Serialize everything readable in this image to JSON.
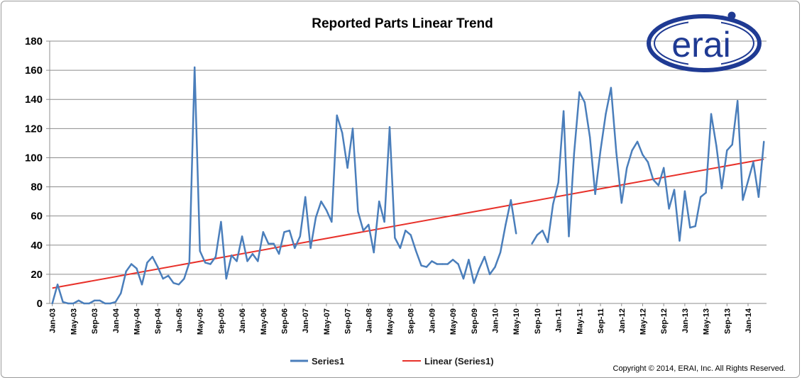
{
  "chart_data": {
    "type": "line",
    "title": "Reported Parts Linear Trend",
    "xlabel": "",
    "ylabel": "",
    "ylim": [
      0,
      180
    ],
    "yticks": [
      "0",
      "20",
      "40",
      "60",
      "80",
      "100",
      "120",
      "140",
      "160",
      "180"
    ],
    "xticks": [
      "Jan-03",
      "May-03",
      "Sep-03",
      "Jan-04",
      "May-04",
      "Sep-04",
      "Jan-05",
      "May-05",
      "Sep-05",
      "Jan-06",
      "May-06",
      "Sep-06",
      "Jan-07",
      "May-07",
      "Sep-07",
      "Jan-08",
      "May-08",
      "Sep-08",
      "Jan-09",
      "May-09",
      "Sep-09",
      "Jan-10",
      "May-10",
      "Sep-10",
      "Jan-11",
      "May-11",
      "Sep-11",
      "Jan-12",
      "May-12",
      "Sep-12",
      "Jan-13",
      "May-13",
      "Sep-13",
      "Jan-14"
    ],
    "x_start": "Jan-03",
    "x_end": "Jun-14",
    "grid": "horizontal",
    "legend_position": "bottom",
    "series": [
      {
        "name": "Series1",
        "color": "#4a7ebb",
        "values": [
          0,
          13,
          1,
          0,
          0,
          2,
          0,
          0,
          2,
          2,
          0,
          0,
          1,
          7,
          22,
          27,
          24,
          13,
          28,
          32,
          25,
          17,
          19,
          14,
          13,
          17,
          28,
          162,
          36,
          28,
          27,
          32,
          56,
          17,
          33,
          29,
          46,
          29,
          34,
          29,
          49,
          41,
          41,
          34,
          49,
          50,
          38,
          46,
          73,
          38,
          59,
          70,
          64,
          56,
          129,
          117,
          93,
          120,
          63,
          50,
          54,
          35,
          70,
          56,
          121,
          45,
          38,
          50,
          47,
          36,
          26,
          25,
          29,
          27,
          27,
          27,
          30,
          27,
          17,
          30,
          14,
          24,
          32,
          20,
          25,
          35,
          54,
          71,
          48,
          null,
          null,
          41,
          47,
          50,
          42,
          68,
          83,
          132,
          46,
          103,
          145,
          138,
          114,
          75,
          105,
          130,
          148,
          104,
          69,
          93,
          105,
          111,
          102,
          97,
          85,
          81,
          93,
          65,
          78,
          43,
          77,
          52,
          53,
          73,
          76,
          130,
          108,
          79,
          105,
          109,
          139,
          71,
          84,
          97,
          73,
          111
        ]
      },
      {
        "name": "Linear (Series1)",
        "color": "#e8312a",
        "start": 10.5,
        "end": 99
      }
    ]
  },
  "logo": {
    "text": "erai"
  },
  "copyright": "Copyright © 2014, ERAI, Inc.  All Rights Reserved."
}
